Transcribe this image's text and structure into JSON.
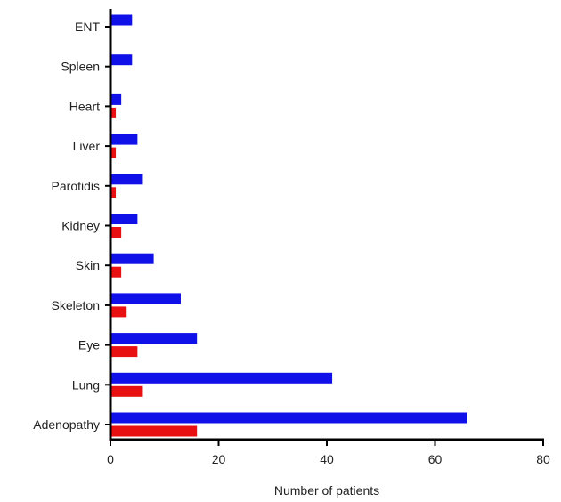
{
  "chart_data": {
    "type": "bar",
    "orientation": "horizontal",
    "categories": [
      "ENT",
      "Spleen",
      "Heart",
      "Liver",
      "Parotidis",
      "Kidney",
      "Skin",
      "Skeleton",
      "Eye",
      "Lung",
      "Adenopathy"
    ],
    "series": [
      {
        "color": "#1010e8",
        "values": [
          4,
          4,
          2,
          5,
          6,
          5,
          8,
          13,
          16,
          41,
          66
        ]
      },
      {
        "color": "#e81010",
        "values": [
          0,
          0,
          1,
          1,
          1,
          2,
          2,
          3,
          5,
          6,
          16
        ]
      }
    ],
    "xlabel": "Number of patients",
    "ylabel": "",
    "xlim": [
      0,
      80
    ],
    "xticks": [
      0,
      20,
      40,
      60,
      80
    ],
    "grid": false
  }
}
